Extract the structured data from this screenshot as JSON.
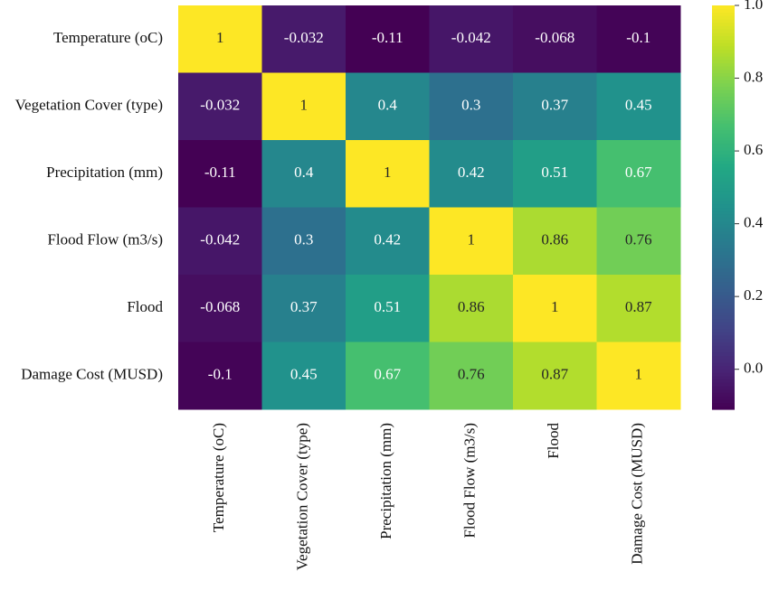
{
  "chart_data": {
    "type": "heatmap",
    "categories": [
      "Temperature (oC)",
      "Vegetation Cover (type)",
      "Precipitation (mm)",
      "Flood Flow (m3/s)",
      "Flood",
      "Damage Cost (MUSD)"
    ],
    "values": [
      [
        1,
        -0.032,
        -0.11,
        -0.042,
        -0.068,
        -0.1
      ],
      [
        -0.032,
        1,
        0.4,
        0.3,
        0.37,
        0.45
      ],
      [
        -0.11,
        0.4,
        1,
        0.42,
        0.51,
        0.67
      ],
      [
        -0.042,
        0.3,
        0.42,
        1,
        0.86,
        0.76
      ],
      [
        -0.068,
        0.37,
        0.51,
        0.86,
        1,
        0.87
      ],
      [
        -0.1,
        0.45,
        0.67,
        0.76,
        0.87,
        1
      ]
    ],
    "colormap": [
      "#440154",
      "#482475",
      "#414487",
      "#355f8d",
      "#2a788e",
      "#21918c",
      "#22a884",
      "#44bf70",
      "#7ad151",
      "#bddf26",
      "#fde725"
    ],
    "zlim": [
      -0.11,
      1
    ],
    "zticks": [
      {
        "value": 0,
        "label": "0.0"
      },
      0.2,
      0.4,
      0.6,
      0.8,
      {
        "value": 1,
        "label": "1.0"
      }
    ]
  }
}
